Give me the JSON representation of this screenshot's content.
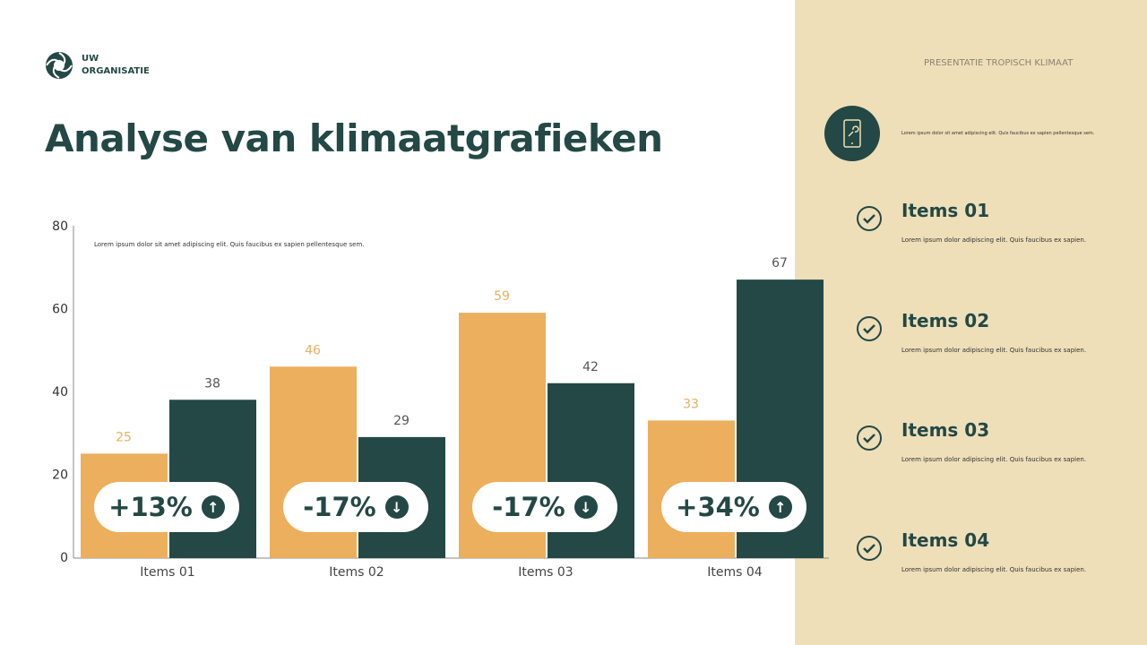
{
  "brand": {
    "name_line1": "UW",
    "name_line2": "ORGANISATIE"
  },
  "title": "Analyse van klimaatgrafieken",
  "presentation_label": "PRESENTATIE TROPISCH KLIMAAT",
  "intro_text": "Lorem ipsum dolor sit amet adipiscing elit. Quis faucibus ex sapien pellentesque sem.",
  "side_items": [
    {
      "title": "Items 01",
      "text": "Lorem ipsum dolor adipiscing elit. Quis faucibus ex sapien."
    },
    {
      "title": "Items 02",
      "text": "Lorem ipsum dolor adipiscing elit. Quis faucibus ex sapien."
    },
    {
      "title": "Items 03",
      "text": "Lorem ipsum dolor adipiscing elit. Quis faucibus ex sapien."
    },
    {
      "title": "Items 04",
      "text": "Lorem ipsum dolor adipiscing elit. Quis faucibus ex sapien."
    }
  ],
  "colors": {
    "dark": "#234845",
    "orange": "#ebaf5e",
    "beige": "#eedfb9"
  },
  "chart_data": {
    "type": "bar",
    "categories": [
      "Items 01",
      "Items 02",
      "Items 03",
      "Items 04"
    ],
    "series": [
      {
        "values": [
          25,
          46,
          59,
          33
        ],
        "color": "#ebaf5e"
      },
      {
        "values": [
          38,
          29,
          42,
          67
        ],
        "color": "#234845"
      }
    ],
    "ylim": [
      0,
      80
    ],
    "yticks": [
      0,
      20,
      40,
      60,
      80
    ],
    "grid": false,
    "note": "Lorem ipsum dolor sit amet adipiscing elit. Quis faucibus ex sapien pellentesque sem.",
    "changes": [
      {
        "label": "+13%",
        "direction": "up"
      },
      {
        "label": "-17%",
        "direction": "down"
      },
      {
        "label": "-17%",
        "direction": "down"
      },
      {
        "label": "+34%",
        "direction": "up"
      }
    ]
  }
}
